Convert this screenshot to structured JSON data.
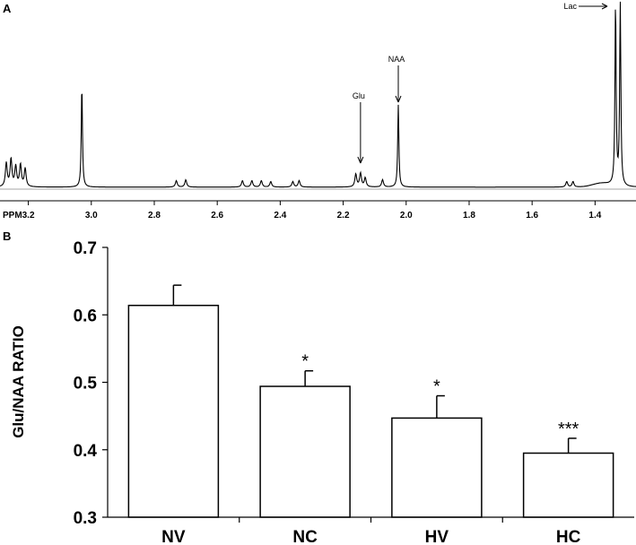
{
  "chart_data": [
    {
      "panel": "A",
      "type": "line",
      "description_kind": "NMR spectrum",
      "xlabel": "PPM",
      "x_ticks": [
        "3.2",
        "3.0",
        "2.8",
        "2.6",
        "2.4",
        "2.2",
        "2.0",
        "1.8",
        "1.6",
        "1.4"
      ],
      "x_tick_values": [
        3.2,
        3.0,
        2.8,
        2.6,
        2.4,
        2.2,
        2.0,
        1.8,
        1.6,
        1.4
      ],
      "xlim": [
        3.29,
        1.27
      ],
      "ylim": [
        0,
        1
      ],
      "peaks": [
        {
          "ppm": 3.27,
          "height": 0.13
        },
        {
          "ppm": 3.255,
          "height": 0.15
        },
        {
          "ppm": 3.24,
          "height": 0.11
        },
        {
          "ppm": 3.225,
          "height": 0.12
        },
        {
          "ppm": 3.21,
          "height": 0.1
        },
        {
          "ppm": 3.03,
          "height": 0.56
        },
        {
          "ppm": 2.73,
          "height": 0.035
        },
        {
          "ppm": 2.7,
          "height": 0.04
        },
        {
          "ppm": 2.52,
          "height": 0.035
        },
        {
          "ppm": 2.49,
          "height": 0.035
        },
        {
          "ppm": 2.46,
          "height": 0.035
        },
        {
          "ppm": 2.43,
          "height": 0.03
        },
        {
          "ppm": 2.36,
          "height": 0.03
        },
        {
          "ppm": 2.34,
          "height": 0.035
        },
        {
          "ppm": 2.16,
          "height": 0.07
        },
        {
          "ppm": 2.145,
          "height": 0.075
        },
        {
          "ppm": 2.13,
          "height": 0.05
        },
        {
          "ppm": 2.075,
          "height": 0.04
        },
        {
          "ppm": 2.025,
          "height": 0.45
        },
        {
          "ppm": 1.49,
          "height": 0.03
        },
        {
          "ppm": 1.47,
          "height": 0.03
        },
        {
          "ppm": 1.335,
          "height": 1.0
        },
        {
          "ppm": 1.32,
          "height": 1.0
        }
      ],
      "annotations": [
        {
          "label": "Lac",
          "ppm": 1.33,
          "arrow": "right"
        },
        {
          "label": "NAA",
          "ppm": 2.025,
          "arrow": "down"
        },
        {
          "label": "Glu",
          "ppm": 2.145,
          "arrow": "down"
        }
      ]
    },
    {
      "panel": "B",
      "type": "bar",
      "categories": [
        "NV",
        "NC",
        "HV",
        "HC"
      ],
      "values": [
        0.614,
        0.494,
        0.447,
        0.395
      ],
      "errors": [
        0.03,
        0.023,
        0.033,
        0.022
      ],
      "significance": [
        "",
        "*",
        "*",
        "***"
      ],
      "ylabel": "Glu/NAA RATIO",
      "xlabel": "",
      "ylim": [
        0.3,
        0.7
      ],
      "y_ticks": [
        "0.3",
        "0.4",
        "0.5",
        "0.6",
        "0.7"
      ],
      "y_tick_values": [
        0.3,
        0.4,
        0.5,
        0.6,
        0.7
      ]
    }
  ]
}
